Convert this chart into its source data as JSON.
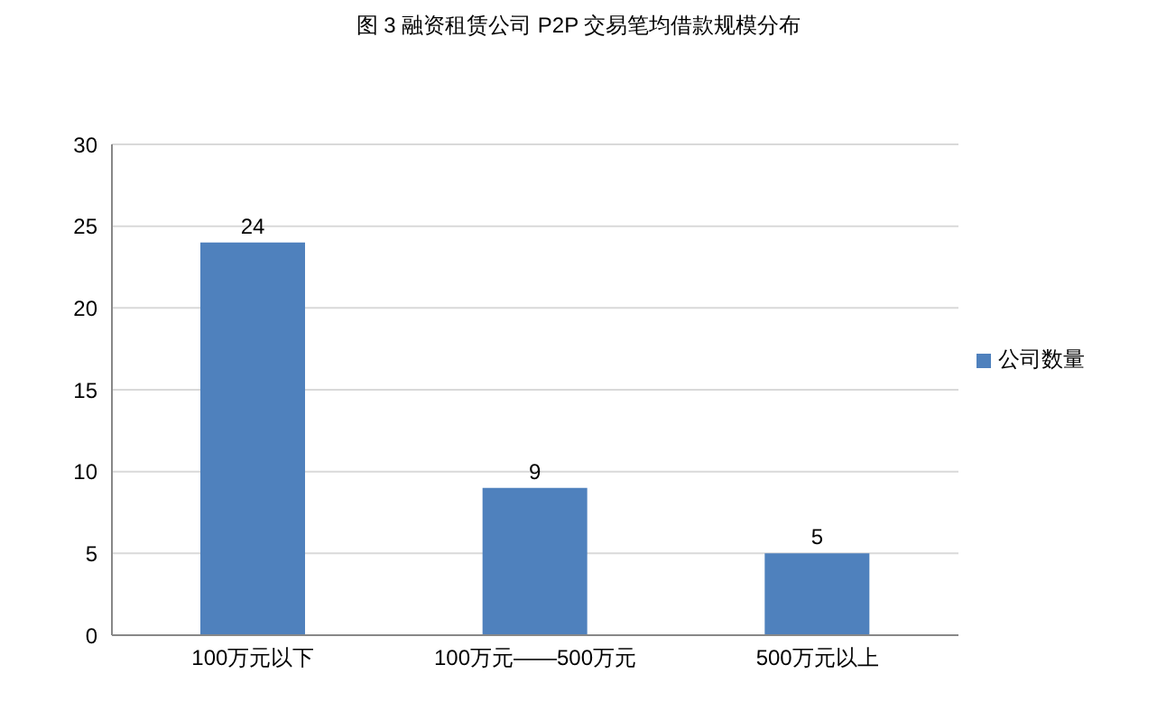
{
  "chart_data": {
    "type": "bar",
    "title": "图 3 融资租赁公司 P2P 交易笔均借款规模分布",
    "categories": [
      "100万元以下",
      "100万元——500万元",
      "500万元以上"
    ],
    "series": [
      {
        "name": "公司数量",
        "color": "#4f81bd",
        "values": [
          24,
          9,
          5
        ]
      }
    ],
    "ylim": [
      0,
      30
    ],
    "yticks": [
      0,
      5,
      10,
      15,
      20,
      25,
      30
    ],
    "grid": "y",
    "legend": "right",
    "data_labels": true
  }
}
